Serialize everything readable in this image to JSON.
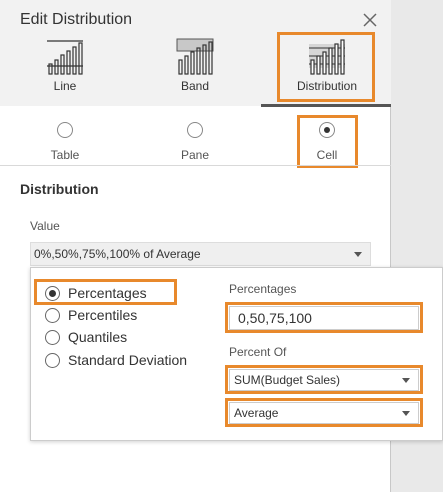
{
  "dialog": {
    "title": "Edit Distribution",
    "close_icon": "close-icon"
  },
  "types": [
    {
      "label": "Line",
      "icon": "line-chart-icon"
    },
    {
      "label": "Band",
      "icon": "band-chart-icon"
    },
    {
      "label": "Distribution",
      "icon": "distribution-chart-icon",
      "selected": true
    }
  ],
  "scope": [
    {
      "label": "Table",
      "selected": false
    },
    {
      "label": "Pane",
      "selected": false
    },
    {
      "label": "Cell",
      "selected": true
    }
  ],
  "distribution": {
    "heading": "Distribution",
    "value_label": "Value",
    "value": "0%,50%,75%,100% of Average"
  },
  "popup": {
    "options": [
      {
        "label": "Percentages",
        "selected": true
      },
      {
        "label": "Percentiles",
        "selected": false
      },
      {
        "label": "Quantiles",
        "selected": false
      },
      {
        "label": "Standard Deviation",
        "selected": false
      }
    ],
    "percentages_label": "Percentages",
    "percentages_value": "0,50,75,100",
    "percent_of_label": "Percent Of",
    "percent_of_field": "SUM(Budget Sales)",
    "aggregation": "Average"
  },
  "colors": {
    "highlight": "#e8892c",
    "header_background": "#f2f2f2",
    "selected_underline": "#555555"
  }
}
